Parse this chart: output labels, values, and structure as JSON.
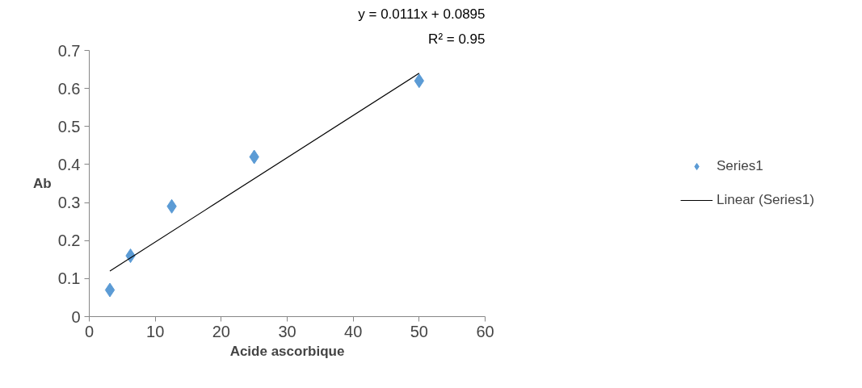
{
  "chart_data": {
    "type": "scatter",
    "xlabel": "Acide ascorbique",
    "ylabel": "Ab",
    "xlim": [
      0,
      60
    ],
    "xticks": [
      0,
      10,
      20,
      30,
      40,
      50,
      60
    ],
    "ylim": [
      0,
      0.7
    ],
    "yticks": [
      0,
      0.1,
      0.2,
      0.3,
      0.4,
      0.5,
      0.6,
      0.7
    ],
    "legend": "right",
    "grid": false,
    "annotations": [
      "y = 0.0111x + 0.0895",
      "R² = 0.95"
    ],
    "series": [
      {
        "name": "Series1",
        "marker": "diamond",
        "color": "#5b9bd5",
        "x": [
          3.125,
          6.25,
          12.5,
          25,
          50
        ],
        "values": [
          0.07,
          0.16,
          0.29,
          0.42,
          0.62
        ]
      },
      {
        "name": "Linear (Series1)",
        "type": "line",
        "color": "#000000",
        "x": [
          3.125,
          50
        ],
        "values": [
          0.12,
          0.64
        ]
      }
    ]
  }
}
